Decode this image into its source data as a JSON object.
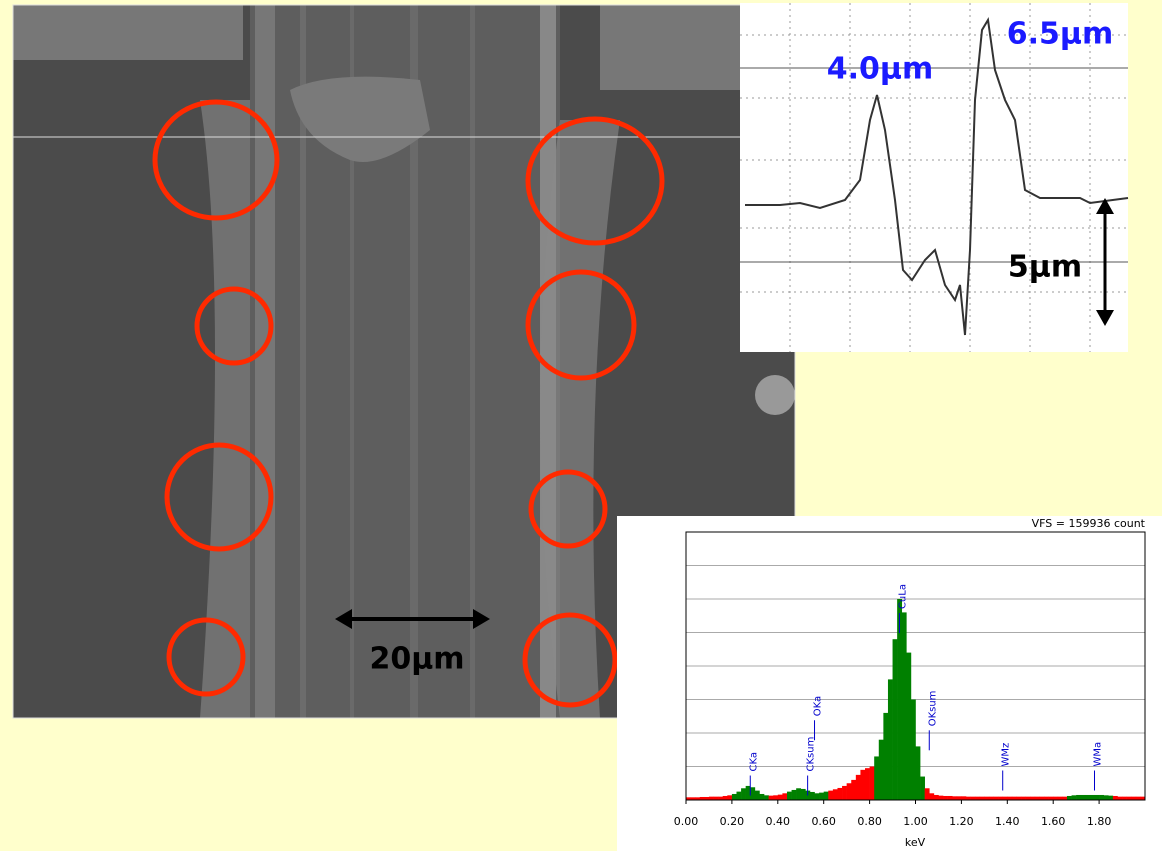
{
  "sem_image": {
    "scale_label": "20μm"
  },
  "profile": {
    "peak_left_label": "4.0μm",
    "peak_right_label": "6.5μm",
    "scale_label": "5μm"
  },
  "chart_data": {
    "type": "histogram",
    "header": "VFS = 159936 count",
    "x_label": "keV",
    "bins": [
      0,
      0.02,
      0.04,
      0.06,
      0.08,
      0.1,
      0.12,
      0.14,
      0.16,
      0.18,
      0.2,
      0.22,
      0.24,
      0.26,
      0.28,
      0.3,
      0.32,
      0.34,
      0.36,
      0.38,
      0.4,
      0.42,
      0.44,
      0.46,
      0.48,
      0.5,
      0.52,
      0.54,
      0.56,
      0.58,
      0.6,
      0.62,
      0.64,
      0.66,
      0.68,
      0.7,
      0.72,
      0.74,
      0.76,
      0.78,
      0.8,
      0.82,
      0.84,
      0.86,
      0.88,
      0.9,
      0.92,
      0.94,
      0.96,
      0.98,
      1,
      1.02,
      1.04,
      1.06,
      1.08,
      1.1,
      1.12,
      1.14,
      1.16,
      1.18,
      1.2,
      1.22,
      1.24,
      1.26,
      1.28,
      1.3,
      1.32,
      1.34,
      1.36,
      1.38,
      1.4,
      1.42,
      1.44,
      1.46,
      1.48,
      1.5,
      1.52,
      1.54,
      1.56,
      1.58,
      1.6,
      1.62,
      1.64,
      1.66,
      1.68,
      1.7,
      1.72,
      1.74,
      1.76,
      1.78,
      1.8,
      1.82,
      1.84,
      1.86,
      1.88,
      1.9,
      1.92,
      1.94,
      1.96,
      1.98,
      2
    ],
    "values": [
      0.08,
      0.08,
      0.08,
      0.09,
      0.09,
      0.1,
      0.1,
      0.1,
      0.12,
      0.14,
      0.18,
      0.25,
      0.35,
      0.42,
      0.38,
      0.28,
      0.18,
      0.14,
      0.13,
      0.14,
      0.16,
      0.2,
      0.25,
      0.3,
      0.35,
      0.33,
      0.28,
      0.24,
      0.2,
      0.22,
      0.25,
      0.28,
      0.32,
      0.36,
      0.42,
      0.5,
      0.6,
      0.75,
      0.9,
      0.95,
      1.0,
      1.3,
      1.8,
      2.6,
      3.6,
      4.8,
      6.0,
      5.6,
      4.4,
      3.0,
      1.6,
      0.7,
      0.35,
      0.2,
      0.15,
      0.13,
      0.12,
      0.12,
      0.11,
      0.11,
      0.11,
      0.1,
      0.1,
      0.1,
      0.1,
      0.1,
      0.1,
      0.1,
      0.1,
      0.1,
      0.1,
      0.1,
      0.1,
      0.1,
      0.1,
      0.1,
      0.1,
      0.1,
      0.1,
      0.1,
      0.1,
      0.1,
      0.1,
      0.12,
      0.14,
      0.15,
      0.15,
      0.15,
      0.15,
      0.15,
      0.15,
      0.14,
      0.13,
      0.12,
      0.1,
      0.1,
      0.1,
      0.1,
      0.1,
      0.1
    ],
    "background_color": "#ff0000",
    "peak_color": "#008000",
    "peak_ranges": [
      [
        0.2,
        0.36
      ],
      [
        0.44,
        0.62
      ],
      [
        0.82,
        1.04
      ],
      [
        1.66,
        1.86
      ]
    ],
    "xlim": [
      0,
      2
    ],
    "ylim": [
      0,
      8
    ],
    "ygrid": [
      1,
      2,
      3,
      4,
      5,
      6,
      7,
      8
    ],
    "xticks": [
      {
        "value": 0,
        "label": "0.00"
      },
      {
        "value": 0.2,
        "label": "0.20"
      },
      {
        "value": 0.4,
        "label": "0.40"
      },
      {
        "value": 0.6,
        "label": "0.60"
      },
      {
        "value": 0.8,
        "label": "0.80"
      },
      {
        "value": 1,
        "label": "1.00"
      },
      {
        "value": 1.2,
        "label": "1.20"
      },
      {
        "value": 1.4,
        "label": "1.40"
      },
      {
        "value": 1.6,
        "label": "1.60"
      },
      {
        "value": 1.8,
        "label": "1.80"
      }
    ],
    "markers": [
      {
        "label": "CKa",
        "x": 0.28
      },
      {
        "label": "CKsum",
        "x": 0.53
      },
      {
        "label": "OKa",
        "x": 0.56
      },
      {
        "label": "CuLa",
        "x": 0.93
      },
      {
        "label": "OKsum",
        "x": 1.06
      },
      {
        "label": "WMz",
        "x": 1.38
      },
      {
        "label": "WMa",
        "x": 1.78
      }
    ]
  }
}
